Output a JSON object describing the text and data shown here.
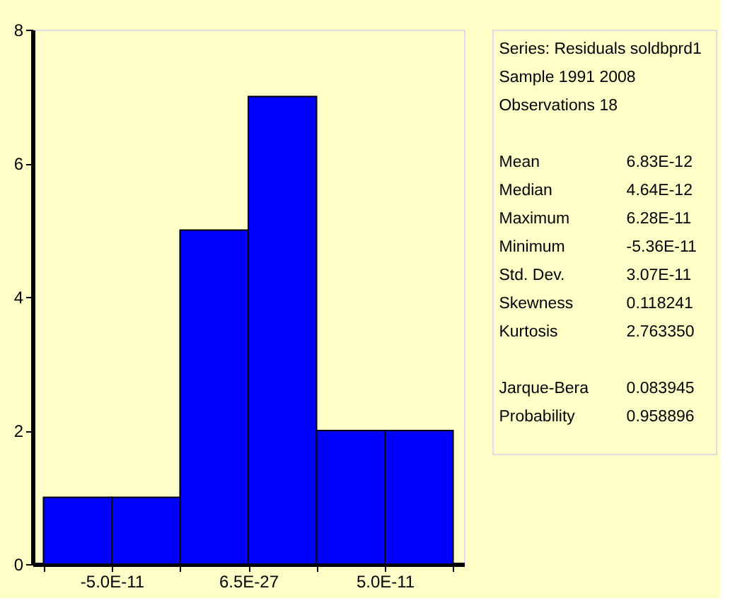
{
  "chart_data": {
    "type": "histogram",
    "bins": [
      -7.5e-11,
      -5e-11,
      -2.5e-11,
      6.5e-27,
      2.5e-11,
      5e-11,
      7.5e-11
    ],
    "values": [
      1,
      1,
      5,
      7,
      2,
      2
    ],
    "color": "#0000ff",
    "xlim": [
      -7.9e-11,
      7.9e-11
    ],
    "xticks": [
      {
        "value": -7.5e-11,
        "label": null
      },
      {
        "value": -5e-11,
        "label": "-5.0E-11"
      },
      {
        "value": -2.5e-11,
        "label": null
      },
      {
        "value": 6.5e-27,
        "label": "6.5E-27"
      },
      {
        "value": 2.5e-11,
        "label": null
      },
      {
        "value": 5e-11,
        "label": "5.0E-11"
      },
      {
        "value": 7.5e-11,
        "label": null
      }
    ],
    "ylim": [
      0,
      8
    ],
    "yticks": [
      0,
      2,
      4,
      6,
      8
    ],
    "grid": false,
    "annotations": [
      "Series: Residuals soldbprd1",
      "Sample 1991 2008",
      "Observations 18",
      "Mean",
      "6.83E-12",
      "Median",
      "4.64E-12",
      "Maximum",
      "6.28E-11",
      "Minimum",
      "-5.36E-11",
      "Std. Dev.",
      "3.07E-11",
      "Skewness",
      "0.118241",
      "Kurtosis",
      "2.763350",
      "Jarque-Bera",
      "0.083945",
      "Probability",
      "0.958896"
    ]
  }
}
